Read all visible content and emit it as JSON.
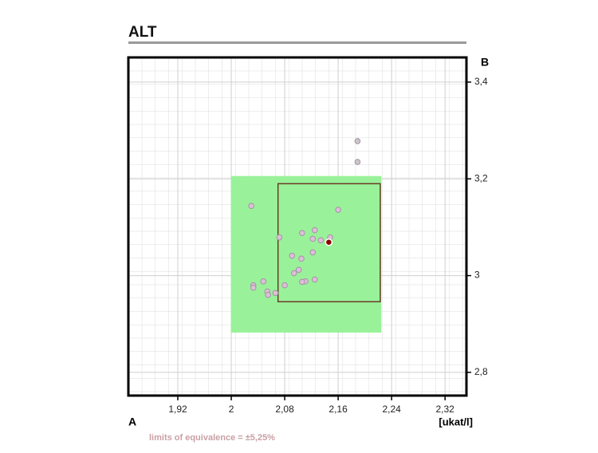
{
  "chart_data": {
    "type": "scatter",
    "title": "ALT",
    "x_label": "A",
    "y_label": "B",
    "unit": "[ukat/l]",
    "note": "limits of equivalence = ±5,25%",
    "xlim": [
      1.846,
      2.352
    ],
    "ylim": [
      2.752,
      3.451
    ],
    "xticks": [
      {
        "value": 1.92,
        "label": "1,92"
      },
      2,
      {
        "value": 2.08,
        "label": "2,08"
      },
      {
        "value": 2.16,
        "label": "2,16"
      },
      {
        "value": 2.24,
        "label": "2,24"
      },
      {
        "value": 2.32,
        "label": "2,32"
      }
    ],
    "yticks": [
      {
        "value": 2.8,
        "label": "2,8"
      },
      3,
      {
        "value": 3.2,
        "label": "3,2"
      },
      {
        "value": 3.4,
        "label": "3,4"
      }
    ],
    "grid": true,
    "regions": [
      {
        "xlim": [
          2.0,
          2.224
        ],
        "ylim": [
          2.883,
          3.205
        ],
        "color": "#99f299"
      },
      {
        "xlim": [
          2.07,
          2.223
        ],
        "ylim": [
          2.946,
          3.19
        ],
        "color": "#6b3a2a"
      }
    ],
    "series": [
      {
        "color": "#dcc0d8",
        "x": [
          2.03,
          2.072,
          2.106,
          2.125,
          2.122,
          2.134,
          2.148,
          2.16,
          2.091,
          2.105,
          2.122,
          2.101,
          2.094,
          2.111,
          2.106,
          2.125,
          2.08,
          2.048,
          2.033,
          2.033,
          2.054,
          2.055,
          2.066
        ],
        "y": [
          3.144,
          3.079,
          3.088,
          3.094,
          3.076,
          3.073,
          3.079,
          3.136,
          3.041,
          3.035,
          3.048,
          3.012,
          3.005,
          2.988,
          2.987,
          2.992,
          2.98,
          2.988,
          2.98,
          2.975,
          2.967,
          2.96,
          2.964
        ]
      },
      {
        "color": "#c8c8c8",
        "x": [
          2.189,
          2.189
        ],
        "y": [
          3.278,
          3.235
        ]
      },
      {
        "color": "#8b0000",
        "x": [
          2.146
        ],
        "y": [
          3.069
        ]
      }
    ]
  }
}
